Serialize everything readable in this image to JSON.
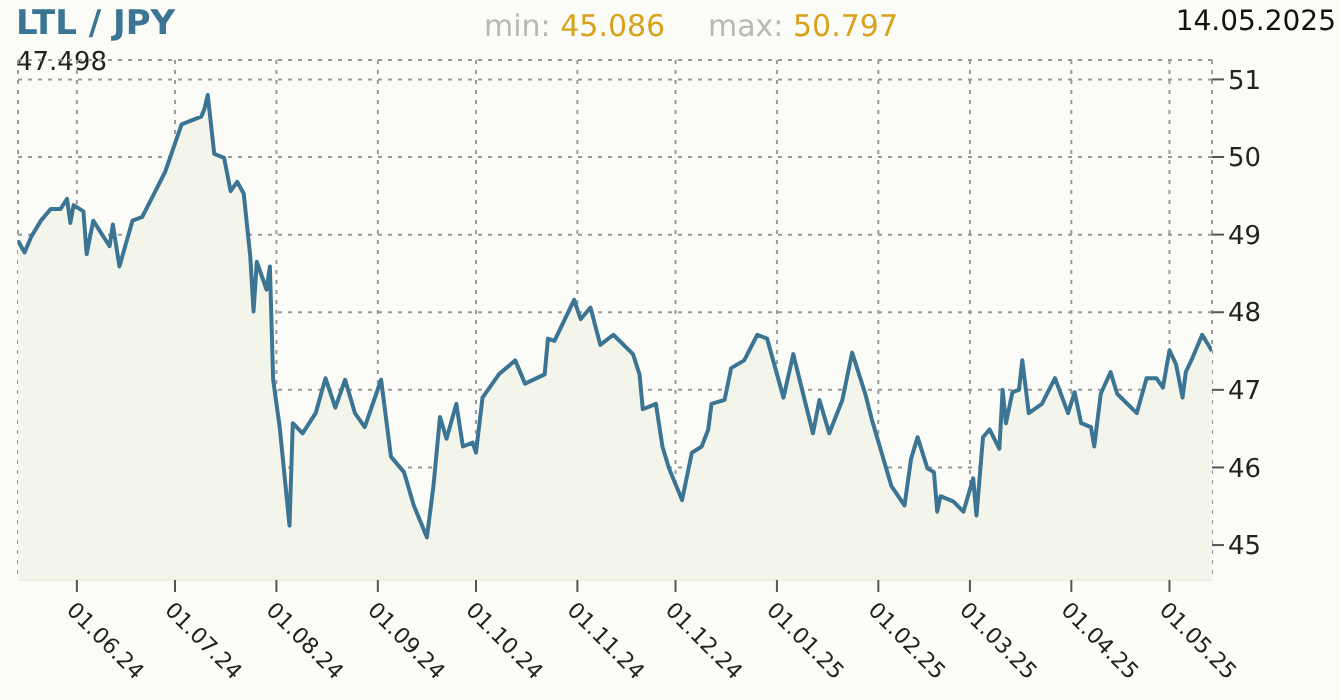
{
  "chart_data": {
    "type": "area",
    "title": "LTL / JPY",
    "subtitle": "14.05.2025",
    "annotations": [
      "min: 45.086",
      "max: 50.797",
      "47.498"
    ],
    "x": [
      "2024-05-14",
      "2024-05-16",
      "2024-05-18",
      "2024-05-21",
      "2024-05-24",
      "2024-05-27",
      "2024-05-29",
      "2024-05-30",
      "2024-05-31",
      "2024-06-03",
      "2024-06-04",
      "2024-06-06",
      "2024-06-11",
      "2024-06-12",
      "2024-06-14",
      "2024-06-18",
      "2024-06-21",
      "2024-06-25",
      "2024-06-28",
      "2024-07-03",
      "2024-07-09",
      "2024-07-10",
      "2024-07-11",
      "2024-07-13",
      "2024-07-16",
      "2024-07-18",
      "2024-07-20",
      "2024-07-22",
      "2024-07-24",
      "2024-07-25",
      "2024-07-26",
      "2024-07-29",
      "2024-07-30",
      "2024-07-31",
      "2024-08-02",
      "2024-08-05",
      "2024-08-06",
      "2024-08-09",
      "2024-08-13",
      "2024-08-16",
      "2024-08-19",
      "2024-08-22",
      "2024-08-25",
      "2024-08-28",
      "2024-09-02",
      "2024-09-05",
      "2024-09-09",
      "2024-09-12",
      "2024-09-16",
      "2024-09-18",
      "2024-09-20",
      "2024-09-22",
      "2024-09-25",
      "2024-09-27",
      "2024-09-30",
      "2024-10-01",
      "2024-10-03",
      "2024-10-08",
      "2024-10-13",
      "2024-10-16",
      "2024-10-22",
      "2024-10-23",
      "2024-10-25",
      "2024-10-31",
      "2024-11-02",
      "2024-11-05",
      "2024-11-08",
      "2024-11-12",
      "2024-11-18",
      "2024-11-20",
      "2024-11-21",
      "2024-11-25",
      "2024-11-27",
      "2024-11-29",
      "2024-12-03",
      "2024-12-06",
      "2024-12-09",
      "2024-12-11",
      "2024-12-12",
      "2024-12-16",
      "2024-12-18",
      "2024-12-22",
      "2024-12-26",
      "2024-12-29",
      "2025-01-03",
      "2025-01-06",
      "2025-01-12",
      "2025-01-14",
      "2025-01-17",
      "2025-01-21",
      "2025-01-24",
      "2025-01-28",
      "2025-01-30",
      "2025-02-02",
      "2025-02-05",
      "2025-02-09",
      "2025-02-11",
      "2025-02-13",
      "2025-02-16",
      "2025-02-18",
      "2025-02-19",
      "2025-02-20",
      "2025-02-24",
      "2025-02-27",
      "2025-03-02",
      "2025-03-03",
      "2025-03-05",
      "2025-03-07",
      "2025-03-10",
      "2025-03-11",
      "2025-03-12",
      "2025-03-14",
      "2025-03-16",
      "2025-03-17",
      "2025-03-19",
      "2025-03-23",
      "2025-03-27",
      "2025-03-31",
      "2025-04-02",
      "2025-04-04",
      "2025-04-07",
      "2025-04-08",
      "2025-04-10",
      "2025-04-13",
      "2025-04-15",
      "2025-04-21",
      "2025-04-24",
      "2025-04-27",
      "2025-04-29",
      "2025-05-01",
      "2025-05-03",
      "2025-05-05",
      "2025-05-06",
      "2025-05-08",
      "2025-05-11",
      "2025-05-14"
    ],
    "series": [
      {
        "color": "#3b7593",
        "values": [
          48.92,
          48.77,
          48.97,
          49.18,
          49.33,
          49.33,
          49.46,
          49.15,
          49.38,
          49.3,
          48.75,
          49.18,
          48.85,
          49.13,
          48.59,
          49.18,
          49.23,
          49.56,
          49.81,
          50.42,
          50.52,
          50.62,
          50.8,
          50.04,
          49.99,
          49.56,
          49.68,
          49.53,
          48.72,
          48.01,
          48.65,
          48.29,
          48.59,
          47.13,
          46.52,
          45.25,
          46.57,
          46.44,
          46.7,
          47.15,
          46.77,
          47.13,
          46.7,
          46.52,
          47.13,
          46.14,
          45.94,
          45.51,
          45.1,
          45.76,
          46.65,
          46.37,
          46.82,
          46.27,
          46.32,
          46.19,
          46.9,
          47.2,
          47.38,
          47.08,
          47.2,
          47.66,
          47.63,
          48.16,
          47.91,
          48.06,
          47.58,
          47.71,
          47.46,
          47.2,
          46.75,
          46.82,
          46.27,
          45.99,
          45.58,
          46.19,
          46.27,
          46.49,
          46.82,
          46.87,
          47.28,
          47.38,
          47.71,
          47.66,
          46.9,
          47.46,
          46.44,
          46.87,
          46.44,
          46.87,
          47.48,
          46.95,
          46.62,
          46.19,
          45.76,
          45.51,
          46.11,
          46.39,
          45.99,
          45.94,
          45.43,
          45.63,
          45.56,
          45.43,
          45.86,
          45.38,
          46.39,
          46.49,
          46.24,
          47.0,
          46.57,
          46.97,
          47.0,
          47.38,
          46.7,
          46.82,
          47.15,
          46.7,
          46.97,
          46.57,
          46.52,
          46.27,
          46.95,
          47.23,
          46.95,
          46.7,
          47.15,
          47.15,
          47.03,
          47.51,
          47.33,
          46.9,
          47.23,
          47.41,
          47.71,
          47.5
        ]
      }
    ],
    "xlim": [
      "2024-05-14",
      "2025-05-14"
    ],
    "xticks": [
      {
        "value": "2024-06-01",
        "label": "01.06.24"
      },
      {
        "value": "2024-07-01",
        "label": "01.07.24"
      },
      {
        "value": "2024-08-01",
        "label": "01.08.24"
      },
      {
        "value": "2024-09-01",
        "label": "01.09.24"
      },
      {
        "value": "2024-10-01",
        "label": "01.10.24"
      },
      {
        "value": "2024-11-01",
        "label": "01.11.24"
      },
      {
        "value": "2024-12-01",
        "label": "01.12.24"
      },
      {
        "value": "2025-01-01",
        "label": "01.01.25"
      },
      {
        "value": "2025-02-01",
        "label": "01.02.25"
      },
      {
        "value": "2025-03-01",
        "label": "01.03.25"
      },
      {
        "value": "2025-04-01",
        "label": "01.04.25"
      },
      {
        "value": "2025-05-01",
        "label": "01.05.25"
      }
    ],
    "ylim": [
      44.55,
      51.25
    ],
    "yticks": [
      45,
      46,
      47,
      48,
      49,
      50,
      51
    ],
    "grid": true
  }
}
